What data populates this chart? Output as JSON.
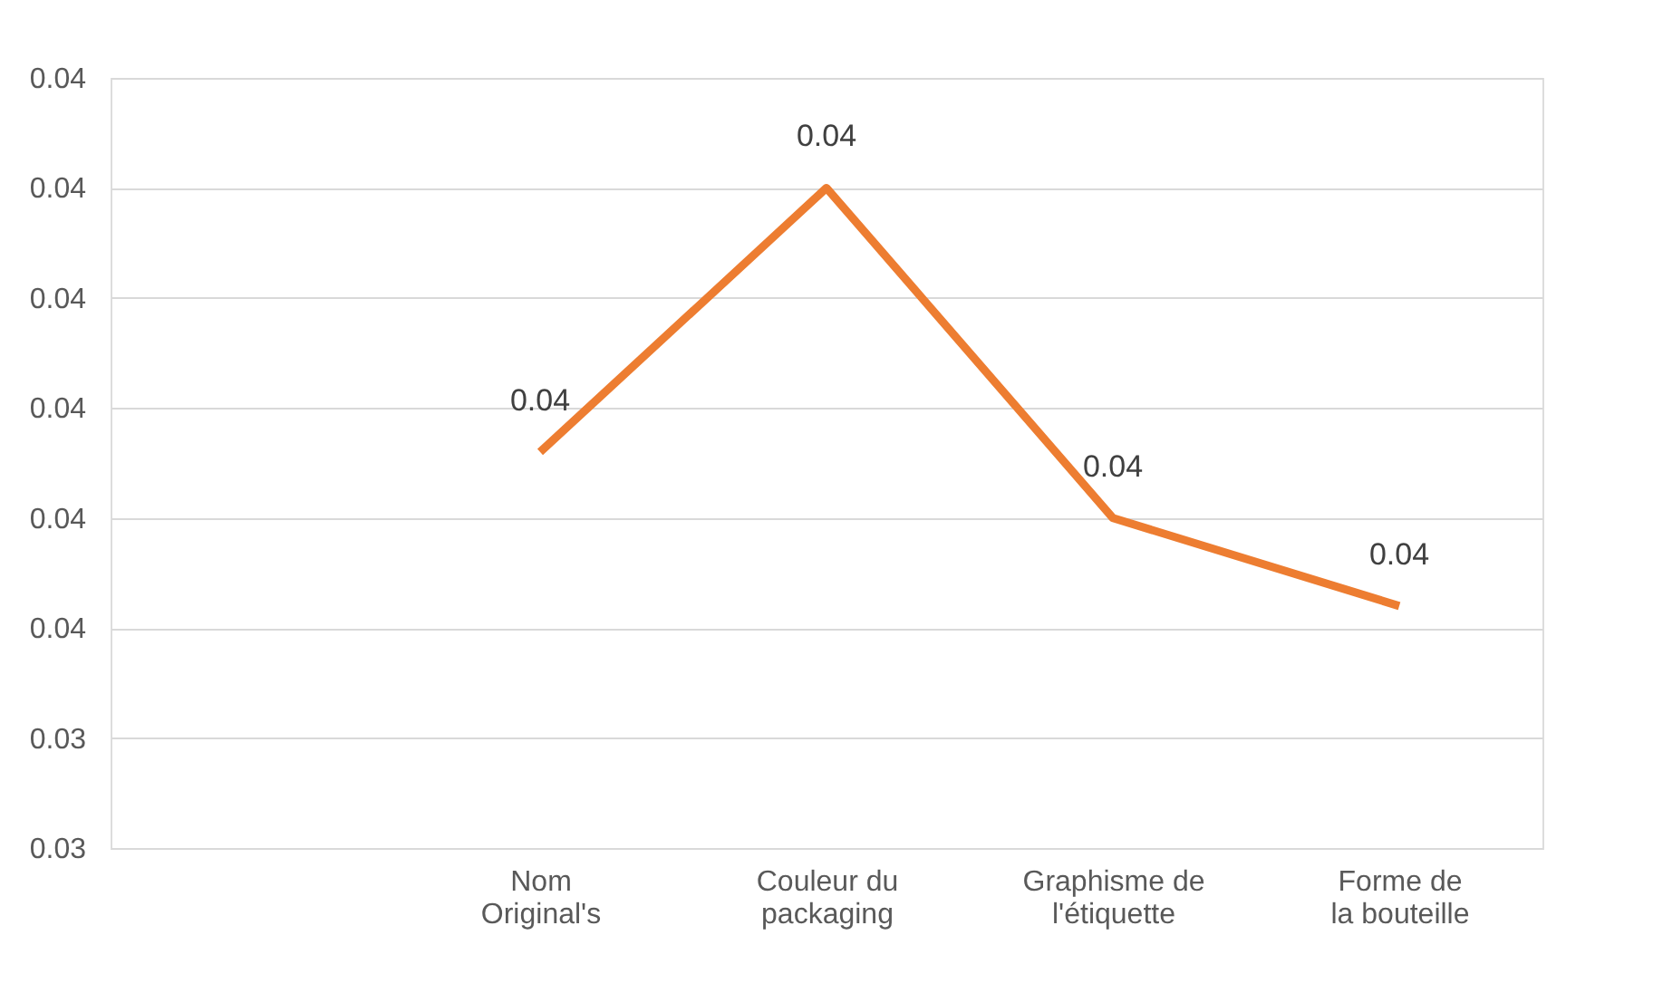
{
  "chart_data": {
    "type": "line",
    "categories": [
      null,
      "Nom Original's",
      "Couleur du packaging",
      "Graphisme de l'étiquette",
      "Forme de la bouteille"
    ],
    "series": [
      {
        "color": "#ed7d31",
        "values": [
          null,
          0.0371,
          0.0395,
          0.0365,
          0.0357
        ],
        "value_labels": [
          null,
          "0.04",
          "0.04",
          "0.04",
          "0.04"
        ]
      }
    ],
    "ylim": [
      0.0335,
      0.0405
    ],
    "yticks": [
      {
        "value": 0.0335,
        "label": "0.03"
      },
      {
        "value": 0.0345,
        "label": "0.03"
      },
      {
        "value": 0.0355,
        "label": "0.04"
      },
      {
        "value": 0.0365,
        "label": "0.04"
      },
      {
        "value": 0.0375,
        "label": "0.04"
      },
      {
        "value": 0.0385,
        "label": "0.04"
      },
      {
        "value": 0.0395,
        "label": "0.04"
      },
      {
        "value": 0.0405,
        "label": "0.04"
      }
    ],
    "grid": "y",
    "legend": false,
    "marker": "none",
    "line_style": "solid"
  }
}
